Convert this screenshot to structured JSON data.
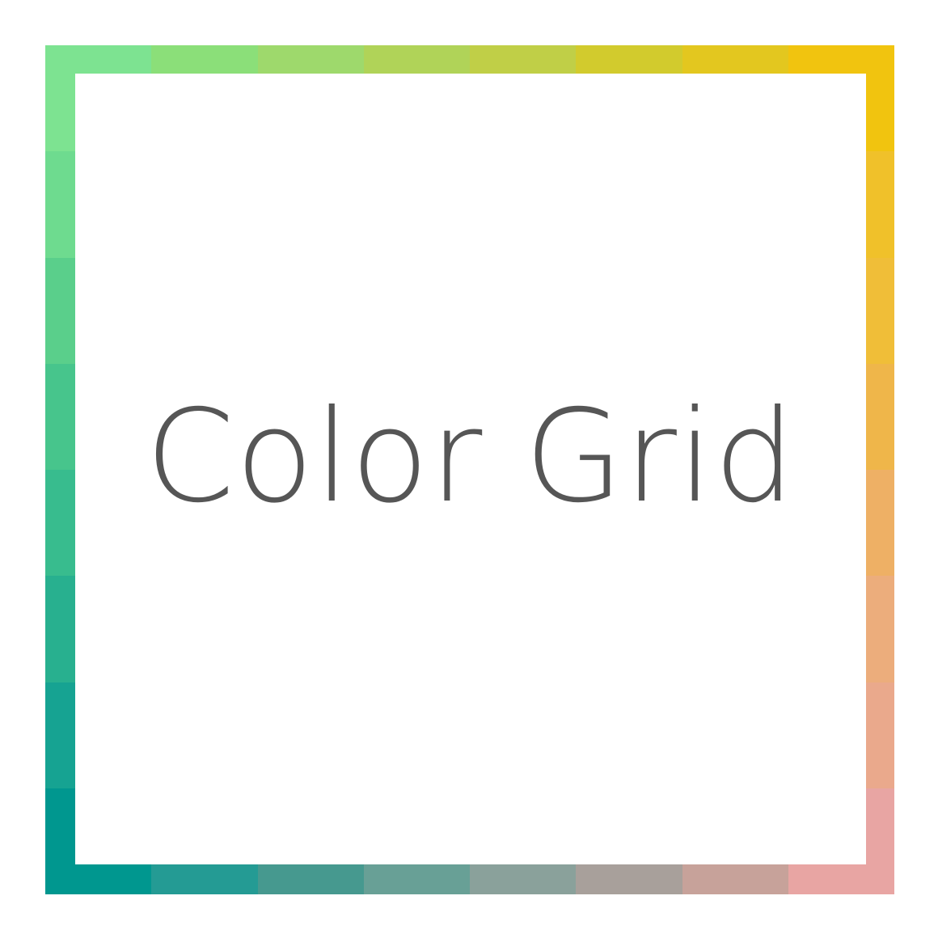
{
  "title": "Color Grid",
  "grid": {
    "columns": 8,
    "rows": 8,
    "top_row": [
      "#7de391",
      "#8bdf79",
      "#9ed96c",
      "#b0d358",
      "#c0cf47",
      "#d2cb2d",
      "#e3c71f",
      "#f1c40f"
    ],
    "bottom_row": [
      "#00978f",
      "#249b94",
      "#46998f",
      "#68a096",
      "#8aa19b",
      "#a8a09b",
      "#c7a29a",
      "#e8a5a3"
    ],
    "left_column": [
      "#7de391",
      "#6edb8f",
      "#5acf8b",
      "#47c58c",
      "#38bc8e",
      "#28b08f",
      "#16a392",
      "#00978f"
    ],
    "right_column": [
      "#f1c40f",
      "#f0c12a",
      "#f0be38",
      "#efb64a",
      "#eeb065",
      "#ecad7c",
      "#eaa98c",
      "#e8a5a3"
    ]
  },
  "colors": {
    "background": "#ffffff",
    "text": "#565656"
  }
}
